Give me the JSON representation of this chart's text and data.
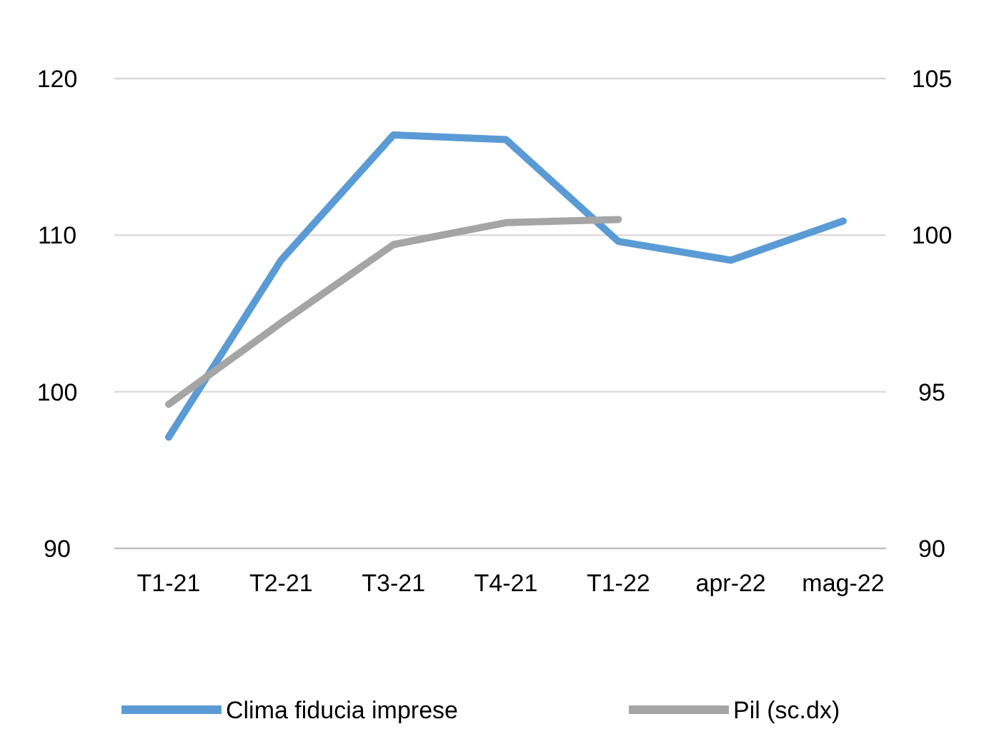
{
  "chart_data": {
    "type": "line",
    "categories": [
      "T1-21",
      "T2-21",
      "T3-21",
      "T4-21",
      "T1-22",
      "apr-22",
      "mag-22"
    ],
    "series": [
      {
        "name": "Clima fiducia imprese",
        "color": "#5b9bd5",
        "values": [
          97.1,
          108.4,
          116.4,
          116.1,
          109.6,
          108.4,
          110.9
        ]
      },
      {
        "name": "Pil (sc.dx)",
        "color": "#a5a5a5",
        "axis": "y2",
        "values": [
          94.6,
          97.2,
          99.7,
          100.4,
          100.5,
          null,
          null
        ]
      }
    ],
    "ylim": [
      90,
      120
    ],
    "yticks": [
      90,
      100,
      110,
      120
    ],
    "y2lim": [
      90,
      105
    ],
    "y2ticks": [
      90,
      95,
      100,
      105
    ],
    "grid": "y",
    "legend": "bottom",
    "marker": "none",
    "line_style": "solid"
  }
}
